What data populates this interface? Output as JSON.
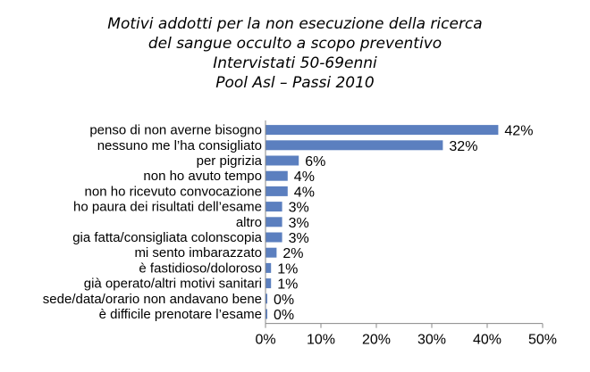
{
  "chart_data": {
    "type": "bar",
    "orientation": "horizontal",
    "title_lines": [
      "Motivi addotti per la non esecuzione della ricerca",
      "del sangue occulto a scopo preventivo",
      "Intervistati 50-69enni",
      "Pool Asl – Passi 2010"
    ],
    "categories": [
      "penso di non averne bisogno",
      "nessuno me l’ha consigliato",
      "per pigrizia",
      "non ho avuto tempo",
      "non ho ricevuto convocazione",
      "ho paura dei risultati dell’esame",
      "altro",
      "gia fatta/consigliata colonscopia",
      "mi sento imbarazzato",
      "è fastidioso/doloroso",
      "già operato/altri motivi sanitari",
      "sede/data/orario non andavano bene",
      "è difficile prenotare l’esame"
    ],
    "values": [
      42,
      32,
      6,
      4,
      4,
      3,
      3,
      3,
      2,
      1,
      1,
      0,
      0
    ],
    "value_labels": [
      "42%",
      "32%",
      "6%",
      "4%",
      "4%",
      "3%",
      "3%",
      "3%",
      "2%",
      "1%",
      "1%",
      "0%",
      "0%"
    ],
    "xlim": [
      0,
      50
    ],
    "x_ticks": [
      0,
      10,
      20,
      30,
      40,
      50
    ],
    "x_tick_labels": [
      "0%",
      "10%",
      "20%",
      "30%",
      "40%",
      "50%"
    ],
    "bar_color": "#5b7fbf",
    "grid": false,
    "legend": false
  }
}
